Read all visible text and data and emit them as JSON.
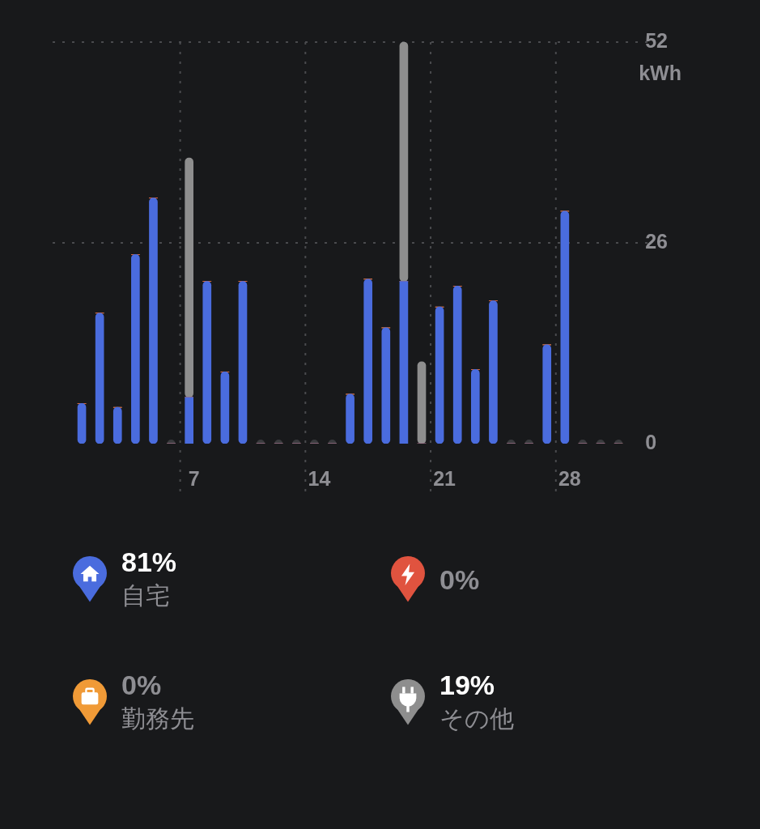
{
  "chart_data": {
    "type": "bar",
    "stacked": true,
    "ylabel": "kWh",
    "categories": [
      null,
      null,
      null,
      null,
      null,
      null,
      "7",
      null,
      null,
      null,
      null,
      null,
      null,
      "14",
      null,
      null,
      null,
      null,
      null,
      null,
      "21",
      null,
      null,
      null,
      null,
      null,
      null,
      "28",
      null,
      null,
      null
    ],
    "series": [
      {
        "name": "自宅",
        "color": "#4a6cde",
        "values": [
          5.2,
          16.9,
          4.7,
          24.5,
          31.8,
          0,
          6,
          21,
          9.3,
          21,
          0,
          0,
          0,
          0,
          0,
          6.4,
          21.3,
          15,
          21,
          0,
          17.7,
          20.4,
          9.6,
          18.5,
          0,
          0,
          12.8,
          30.1,
          0,
          0,
          0
        ]
      },
      {
        "color": "#e0533f",
        "values": [
          0,
          0,
          0,
          0,
          0,
          0,
          0,
          0,
          0,
          0,
          0,
          0,
          0,
          0,
          0,
          0,
          0,
          0,
          0,
          0,
          0,
          0,
          0,
          0,
          0,
          0,
          0,
          0,
          0,
          0,
          0
        ]
      },
      {
        "name": "勤務先",
        "color": "#f09a37",
        "values": [
          0,
          0,
          0,
          0,
          0,
          0,
          0,
          0,
          0,
          0,
          0,
          0,
          0,
          0,
          0,
          0,
          0,
          0,
          0,
          0,
          0,
          0,
          0,
          0,
          0,
          0,
          0,
          0,
          0,
          0,
          0
        ]
      },
      {
        "name": "その他",
        "color": "#8e8e8e",
        "values": [
          0,
          0,
          0,
          0,
          0,
          0,
          31,
          0,
          0,
          0,
          0,
          0,
          0,
          0,
          0,
          0,
          0,
          0,
          31,
          10.6,
          0,
          0,
          0,
          0,
          0,
          0,
          0,
          0,
          0,
          0,
          0
        ]
      },
      {
        "type": "scatter",
        "color": "#3a3b3e",
        "values": [
          null,
          null,
          null,
          null,
          null,
          0,
          null,
          null,
          null,
          null,
          0,
          0,
          0,
          0,
          0,
          null,
          null,
          null,
          null,
          null,
          null,
          null,
          null,
          null,
          0,
          0,
          null,
          null,
          0,
          0,
          0
        ]
      }
    ],
    "ylim": [
      0,
      52
    ],
    "yticks": [
      0,
      26,
      52
    ],
    "grid": true,
    "legend": "bottom",
    "annotations": [
      "81%",
      "0%",
      "0%",
      "19%"
    ]
  }
}
